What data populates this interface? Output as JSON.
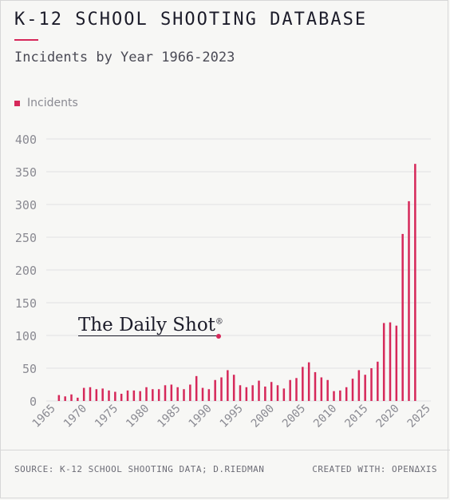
{
  "header": {
    "title": "K-12 SCHOOL SHOOTING DATABASE",
    "subtitle": "Incidents by Year 1966-2023"
  },
  "legend": {
    "label": "Incidents"
  },
  "watermark": {
    "text": "The Daily Shot",
    "mark": "®"
  },
  "footer": {
    "source": "SOURCE: K-12 SCHOOL SHOOTING DATA; D.RIEDMAN",
    "credit": "CREATED WITH: OPENΔXIS"
  },
  "colors": {
    "accent": "#d6285a",
    "grid": "#e2e2e2",
    "text": "#1c1c2a"
  },
  "chart_data": {
    "type": "bar",
    "series": [
      {
        "name": "Incidents",
        "x": [
          1966,
          1967,
          1968,
          1969,
          1970,
          1971,
          1972,
          1973,
          1974,
          1975,
          1976,
          1977,
          1978,
          1979,
          1980,
          1981,
          1982,
          1983,
          1984,
          1985,
          1986,
          1987,
          1988,
          1989,
          1990,
          1991,
          1992,
          1993,
          1994,
          1995,
          1996,
          1997,
          1998,
          1999,
          2000,
          2001,
          2002,
          2003,
          2004,
          2005,
          2006,
          2007,
          2008,
          2009,
          2010,
          2011,
          2012,
          2013,
          2014,
          2015,
          2016,
          2017,
          2018,
          2019,
          2020,
          2021,
          2022,
          2023
        ],
        "values": [
          9,
          7,
          10,
          5,
          20,
          21,
          18,
          19,
          16,
          14,
          11,
          16,
          16,
          15,
          21,
          18,
          18,
          24,
          25,
          21,
          18,
          25,
          38,
          20,
          18,
          32,
          36,
          47,
          40,
          24,
          21,
          24,
          31,
          22,
          29,
          24,
          19,
          32,
          35,
          52,
          59,
          44,
          36,
          32,
          15,
          16,
          21,
          34,
          47,
          40,
          50,
          60,
          119,
          120,
          115,
          255,
          305,
          362
        ]
      }
    ],
    "xlim": [
      1965,
      2025
    ],
    "ylim": [
      0,
      400
    ],
    "x_ticks": [
      1965,
      1970,
      1975,
      1980,
      1985,
      1990,
      1995,
      2000,
      2005,
      2010,
      2015,
      2020,
      2025
    ],
    "y_ticks": [
      0,
      50,
      100,
      150,
      200,
      250,
      300,
      350,
      400
    ],
    "grid": "horizontal",
    "legend_position": "top-left"
  }
}
